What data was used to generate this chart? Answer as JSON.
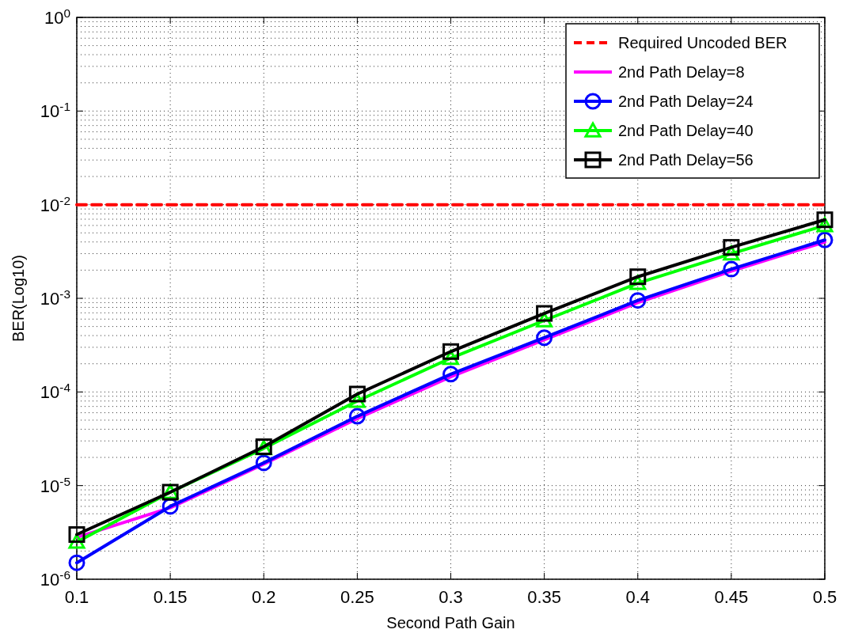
{
  "chart_data": {
    "type": "line",
    "xlabel": "Second Path Gain",
    "ylabel": "BER(Log10)",
    "log": "y",
    "grid": true,
    "legend": "top right",
    "xlim": [
      0.1,
      0.5
    ],
    "xticks": [
      0.1,
      0.15,
      0.2,
      0.25,
      0.3,
      0.35,
      0.4,
      0.45,
      0.5
    ],
    "ylim": [
      1e-06,
      1
    ],
    "yticks": [
      {
        "value": 1e-06,
        "label": "10$^{-6}$"
      },
      {
        "value": 1e-05,
        "label": "10$^{-5}$"
      },
      {
        "value": 0.0001,
        "label": "10$^{-4}$"
      },
      {
        "value": 0.001,
        "label": "10$^{-3}$"
      },
      {
        "value": 0.01,
        "label": "10$^{-2}$"
      },
      {
        "value": 0.1,
        "label": "10$^{-1}$"
      },
      {
        "value": 1,
        "label": "10$^{0}$"
      }
    ],
    "x": [
      0.1,
      0.15,
      0.2,
      0.25,
      0.3,
      0.35,
      0.4,
      0.45,
      0.5
    ],
    "series": [
      {
        "name": "Required Uncoded BER",
        "color": "#ff0000",
        "x": [
          0.1,
          0.5
        ],
        "values": [
          0.01,
          0.01
        ],
        "line_style": "dashed",
        "marker": "none"
      },
      {
        "name": "2nd Path Delay=8",
        "color": "#ff00ff",
        "values": [
          2.8e-06,
          5.8e-06,
          1.7e-05,
          5.2e-05,
          0.000145,
          0.00036,
          0.0009,
          0.00195,
          0.004
        ],
        "line_style": "solid",
        "marker": "none"
      },
      {
        "name": "2nd Path Delay=24",
        "color": "#0000ff",
        "values": [
          1.5e-06,
          6e-06,
          1.75e-05,
          5.5e-05,
          0.000155,
          0.00038,
          0.00095,
          0.00205,
          0.0042
        ],
        "line_style": "solid",
        "marker": "circle"
      },
      {
        "name": "2nd Path Delay=40",
        "color": "#00ff00",
        "values": [
          2.5e-06,
          8.5e-06,
          2.5e-05,
          8e-05,
          0.00023,
          0.00058,
          0.00145,
          0.003,
          0.006
        ],
        "line_style": "solid",
        "marker": "triangle"
      },
      {
        "name": "2nd Path Delay=56",
        "color": "#000000",
        "values": [
          3e-06,
          8.5e-06,
          2.6e-05,
          9.5e-05,
          0.00027,
          0.00069,
          0.0017,
          0.0035,
          0.0069
        ],
        "line_style": "solid",
        "marker": "square"
      }
    ]
  }
}
